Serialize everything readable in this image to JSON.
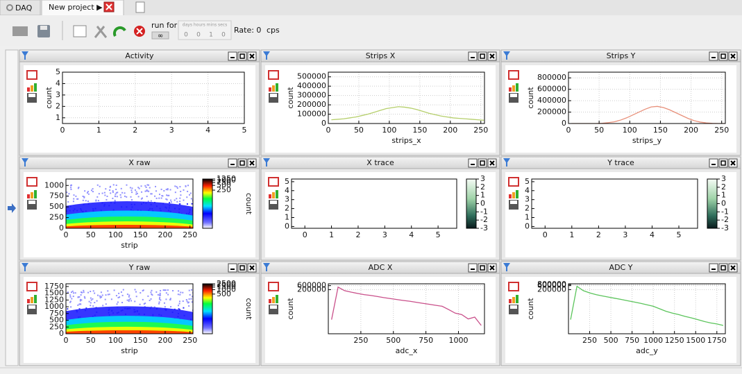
{
  "tabs": [
    {
      "label": "DAQ"
    },
    {
      "label": "New project ▶"
    }
  ],
  "toolbar": {
    "run_for": "run for",
    "infinite": "∞",
    "duration_units": "days hours mins secs",
    "duration": [
      "0",
      "0",
      "1",
      "0"
    ],
    "rate": "Rate: 0",
    "rate_unit": "cps"
  },
  "panels": [
    {
      "title": "Activity",
      "chart": {
        "type": "line",
        "ylabel": "count",
        "xlim": [
          0,
          5
        ],
        "ylim": [
          0.5,
          5
        ],
        "xticks": [
          0,
          1,
          2,
          3,
          4,
          5
        ],
        "yticks": [
          1,
          2,
          3,
          4,
          5
        ],
        "grid": true
      }
    },
    {
      "title": "Strips X",
      "chart": {
        "type": "line",
        "xlabel": "strips_x",
        "ylabel": "count",
        "xlim": [
          0,
          256
        ],
        "ylim": [
          0,
          550000
        ],
        "xticks": [
          0,
          50,
          100,
          150,
          200,
          250
        ],
        "yticks": [
          0,
          100000,
          200000,
          300000,
          400000,
          500000
        ],
        "grid": true,
        "color": "#b5cf6b",
        "x": [
          5,
          15,
          25,
          35,
          45,
          55,
          65,
          75,
          85,
          95,
          105,
          115,
          125,
          135,
          145,
          155,
          165,
          175,
          185,
          195,
          205,
          215,
          225,
          235,
          245,
          255
        ],
        "values": [
          40000,
          45000,
          50000,
          60000,
          70000,
          85000,
          100000,
          120000,
          140000,
          160000,
          170000,
          180000,
          175000,
          165000,
          150000,
          130000,
          110000,
          95000,
          80000,
          70000,
          60000,
          55000,
          50000,
          45000,
          40000,
          35000
        ]
      }
    },
    {
      "title": "Strips Y",
      "chart": {
        "type": "line",
        "xlabel": "strips_y",
        "ylabel": "count",
        "xlim": [
          0,
          256
        ],
        "ylim": [
          0,
          900000
        ],
        "xticks": [
          0,
          50,
          100,
          150,
          200,
          250
        ],
        "yticks": [
          0,
          200000,
          400000,
          600000,
          800000
        ],
        "grid": true,
        "color": "#e8907a",
        "x": [
          5,
          15,
          25,
          35,
          45,
          55,
          65,
          75,
          85,
          95,
          105,
          115,
          125,
          135,
          145,
          155,
          165,
          175,
          185,
          195,
          205,
          215,
          225,
          235,
          245,
          255
        ],
        "values": [
          0,
          0,
          0,
          0,
          0,
          5000,
          15000,
          30000,
          60000,
          100000,
          150000,
          200000,
          250000,
          290000,
          300000,
          280000,
          240000,
          190000,
          140000,
          90000,
          50000,
          25000,
          10000,
          3000,
          0,
          0
        ]
      }
    },
    {
      "title": "X raw",
      "chart": {
        "type": "heatmap",
        "xlabel": "strip",
        "cblabel": "count",
        "xlim": [
          0,
          256
        ],
        "ylim": [
          0,
          1150
        ],
        "xticks": [
          0,
          50,
          100,
          150,
          200,
          250
        ],
        "yticks": [
          0,
          250,
          500,
          750,
          1000
        ],
        "cblim": [
          1,
          1250
        ],
        "cblog": true,
        "cbticks": [
          250,
          500,
          750,
          1000,
          1250
        ]
      }
    },
    {
      "title": "X trace",
      "chart": {
        "type": "trace",
        "xlim": [
          -0.5,
          5.7
        ],
        "ylim": [
          -0.2,
          5.3
        ],
        "xticks": [
          0,
          1,
          2,
          3,
          4,
          5
        ],
        "yticks": [
          0,
          1,
          2,
          3,
          4,
          5
        ],
        "cblim": [
          -3,
          3
        ],
        "cbticks": [
          -3,
          -2,
          -1,
          0,
          1,
          2,
          3
        ]
      }
    },
    {
      "title": "Y trace",
      "chart": {
        "type": "trace",
        "xlim": [
          -0.5,
          5.7
        ],
        "ylim": [
          -0.2,
          5.3
        ],
        "xticks": [
          0,
          1,
          2,
          3,
          4,
          5
        ],
        "yticks": [
          0,
          1,
          2,
          3,
          4,
          5
        ],
        "cblim": [
          -3,
          3
        ],
        "cbticks": [
          -3,
          -2,
          -1,
          0,
          1,
          2,
          3
        ]
      }
    },
    {
      "title": "Y raw",
      "chart": {
        "type": "heatmap",
        "xlabel": "strip",
        "cblabel": "count",
        "xlim": [
          0,
          256
        ],
        "ylim": [
          0,
          1850
        ],
        "xticks": [
          0,
          50,
          100,
          150,
          200,
          250
        ],
        "yticks": [
          0,
          250,
          500,
          750,
          1000,
          1250,
          1500,
          1750
        ],
        "cblim": [
          1,
          2500
        ],
        "cblog": true,
        "cbticks": [
          500,
          1000,
          1500,
          2000,
          2500
        ]
      }
    },
    {
      "title": "ADC X",
      "chart": {
        "type": "line",
        "ylog": true,
        "xlabel": "adc_x",
        "ylabel": "count",
        "xlim": [
          0,
          1200
        ],
        "ylim": [
          1,
          1000000
        ],
        "xticks": [
          250,
          500,
          750,
          1000
        ],
        "yticks": [
          200000,
          600000
        ],
        "grid": true,
        "color": "#c94f8a",
        "x": [
          25,
          75,
          125,
          175,
          225,
          275,
          325,
          375,
          425,
          475,
          525,
          575,
          625,
          675,
          725,
          775,
          825,
          875,
          925,
          975,
          1025,
          1075,
          1125,
          1175
        ],
        "values": [
          50,
          400000,
          150000,
          100000,
          70000,
          50000,
          40000,
          30000,
          22000,
          17000,
          13000,
          10000,
          8000,
          6000,
          4500,
          3500,
          2600,
          2000,
          800,
          300,
          200,
          60,
          100,
          10
        ]
      }
    },
    {
      "title": "ADC Y",
      "chart": {
        "type": "line",
        "ylog": true,
        "xlabel": "adc_y",
        "ylabel": "count",
        "xlim": [
          0,
          1850
        ],
        "ylim": [
          1,
          1000000
        ],
        "xticks": [
          250,
          500,
          750,
          1000,
          1250,
          1500,
          1750
        ],
        "yticks": [
          200000,
          600000,
          800000
        ],
        "grid": true,
        "color": "#5bc45b",
        "x": [
          25,
          100,
          175,
          250,
          325,
          400,
          475,
          550,
          625,
          700,
          775,
          850,
          925,
          1000,
          1075,
          1150,
          1225,
          1300,
          1375,
          1450,
          1525,
          1600,
          1675,
          1750,
          1825
        ],
        "values": [
          50,
          500000,
          150000,
          80000,
          50000,
          35000,
          25000,
          18000,
          13000,
          9000,
          6500,
          4500,
          3000,
          2000,
          1000,
          500,
          300,
          200,
          120,
          80,
          50,
          30,
          20,
          15,
          10
        ]
      }
    }
  ]
}
